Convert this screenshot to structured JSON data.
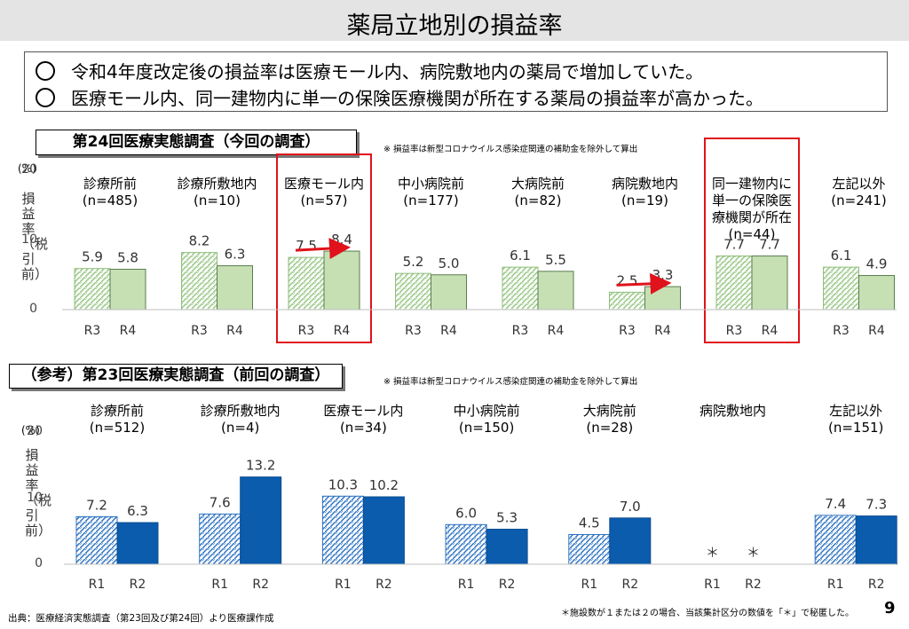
{
  "page": {
    "title": "薬局立地別の損益率",
    "summary": [
      "令和4年度改定後の損益率は医療モール内、病院敷地内の薬局で増加していた。",
      "医療モール内、同一建物内に単一の保険医療機関が所在する薬局の損益率が高かった。"
    ],
    "source": "出典：医療経済実態調査（第23回及び第24回）より医療課作成",
    "footnote": "＊施設数が１または２の場合、当該集計区分の数値を「＊」で秘匿した。",
    "page_number": "9"
  },
  "colors": {
    "chart1_bar": "#c6e0b4",
    "chart2_bar": "#0b5cad",
    "highlight": "#e0121b",
    "arrow": "#e0121b"
  },
  "chart_data": [
    {
      "type": "bar",
      "title": "第24回医療実態調査（今回の調査）",
      "note": "※ 損益率は新型コロナウイルス感染症関連の補助金を除外して算出",
      "unit": "(%)",
      "ylabel": "損益率（税引前）",
      "ylim": [
        0,
        20
      ],
      "yticks": [
        "0",
        "10",
        "20"
      ],
      "series_labels": [
        "R3",
        "R4"
      ],
      "categories": [
        {
          "name": "診療所前",
          "n": "(n=485)",
          "values": [
            5.9,
            5.8
          ],
          "labels": [
            "5.9",
            "5.8"
          ]
        },
        {
          "name": "診療所敷地内",
          "n": "(n=10)",
          "values": [
            8.2,
            6.3
          ],
          "labels": [
            "8.2",
            "6.3"
          ]
        },
        {
          "name": "医療モール内",
          "n": "(n=57)",
          "values": [
            7.5,
            8.4
          ],
          "labels": [
            "7.5",
            "8.4"
          ],
          "highlight": true,
          "arrow": true
        },
        {
          "name": "中小病院前",
          "n": "(n=177)",
          "values": [
            5.2,
            5.0
          ],
          "labels": [
            "5.2",
            "5.0"
          ]
        },
        {
          "name": "大病院前",
          "n": "(n=82)",
          "values": [
            6.1,
            5.5
          ],
          "labels": [
            "6.1",
            "5.5"
          ]
        },
        {
          "name": "病院敷地内",
          "n": "(n=19)",
          "values": [
            2.5,
            3.3
          ],
          "labels": [
            "2.5",
            "3.3"
          ],
          "arrow": true
        },
        {
          "name": "同一建物内に\n単一の保険医\n療機関が所在",
          "n": "(n=44)",
          "values": [
            7.7,
            7.7
          ],
          "labels": [
            "7.7",
            "7.7"
          ],
          "highlight": true
        },
        {
          "name": "左記以外",
          "n": "(n=241)",
          "values": [
            6.1,
            4.9
          ],
          "labels": [
            "6.1",
            "4.9"
          ]
        }
      ]
    },
    {
      "type": "bar",
      "title": "（参考）第23回医療実態調査（前回の調査）",
      "note": "※ 損益率は新型コロナウイルス感染症関連の補助金を除外して算出",
      "unit": "(%)",
      "ylabel": "損益率（税引前）",
      "ylim": [
        0,
        20
      ],
      "yticks": [
        "0",
        "10",
        "20"
      ],
      "series_labels": [
        "R1",
        "R2"
      ],
      "categories": [
        {
          "name": "診療所前",
          "n": "(n=512)",
          "values": [
            7.2,
            6.3
          ],
          "labels": [
            "7.2",
            "6.3"
          ]
        },
        {
          "name": "診療所敷地内",
          "n": "(n=4)",
          "values": [
            7.6,
            13.2
          ],
          "labels": [
            "7.6",
            "13.2"
          ]
        },
        {
          "name": "医療モール内",
          "n": "(n=34)",
          "values": [
            10.3,
            10.2
          ],
          "labels": [
            "10.3",
            "10.2"
          ]
        },
        {
          "name": "中小病院前",
          "n": "(n=150)",
          "values": [
            6.0,
            5.3
          ],
          "labels": [
            "6.0",
            "5.3"
          ]
        },
        {
          "name": "大病院前",
          "n": "(n=28)",
          "values": [
            4.5,
            7.0
          ],
          "labels": [
            "4.5",
            "7.0"
          ]
        },
        {
          "name": "病院敷地内",
          "n": "",
          "values": [
            null,
            null
          ],
          "labels": [
            "＊",
            "＊"
          ]
        },
        {
          "name": "左記以外",
          "n": "(n=151)",
          "values": [
            7.4,
            7.3
          ],
          "labels": [
            "7.4",
            "7.3"
          ]
        }
      ]
    }
  ]
}
